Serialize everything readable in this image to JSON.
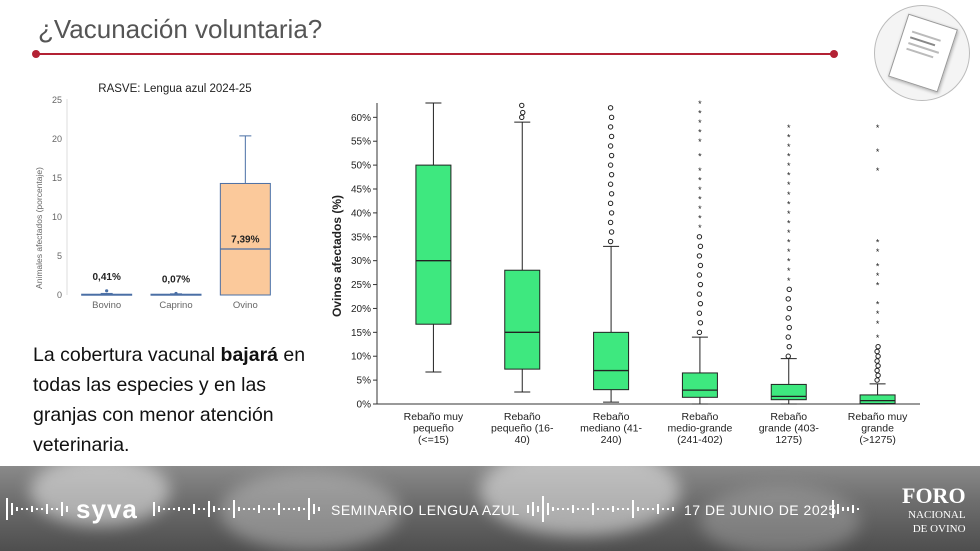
{
  "slide": {
    "title": "¿Vacunación voluntaria?",
    "body_prefix": "La cobertura vacunal ",
    "body_bold": "bajará",
    "body_suffix": " en todas las especies y en las granjas con menor atención veterinaria."
  },
  "footer": {
    "logo_left": "syva",
    "event": "SEMINARIO LENGUA AZUL",
    "date": "17 DE JUNIO DE 2025",
    "logo_right_line1": "FORO",
    "logo_right_line2": "NACIONAL",
    "logo_right_line3": "DE OVINO"
  },
  "colors": {
    "accent": "#b32134",
    "box_orange": "#fbc99b",
    "box_green": "#3ee87f",
    "whisker_blue": "#4a6fa5"
  },
  "chart_data": [
    {
      "type": "box",
      "title": "RASVE: Lengua azul 2024-25",
      "ylabel": "Animales afectados (porcentaje)",
      "xlabel": "",
      "ylim": [
        0,
        25
      ],
      "yticks": [
        "0",
        "5",
        "10",
        "15",
        "20",
        "25"
      ],
      "grid": false,
      "categories": [
        "Bovino",
        "Caprino",
        "Ovino"
      ],
      "boxes": [
        {
          "category": "Bovino",
          "min": 0,
          "q1": 0,
          "median": 0.05,
          "q3": 0.1,
          "max": 0.2,
          "mean": 0.41,
          "mean_label": "0,41%"
        },
        {
          "category": "Caprino",
          "min": 0,
          "q1": 0,
          "median": 0.05,
          "q3": 0.1,
          "max": 0.15,
          "mean": 0.07,
          "mean_label": "0,07%"
        },
        {
          "category": "Ovino",
          "min": 0,
          "q1": 0,
          "median": 5.9,
          "q3": 14.3,
          "max": 20.4,
          "mean": 7.39,
          "mean_label": "7,39%"
        }
      ]
    },
    {
      "type": "box",
      "title": "",
      "ylabel": "Ovinos afectados (%)",
      "xlabel": "",
      "ylim": [
        0,
        63
      ],
      "yticks": [
        "0%",
        "5%",
        "10%",
        "15%",
        "20%",
        "25%",
        "30%",
        "35%",
        "40%",
        "45%",
        "50%",
        "55%",
        "60%"
      ],
      "grid": false,
      "categories": [
        [
          "Rebaño muy",
          "pequeño",
          "(<=15)"
        ],
        [
          "Rebaño",
          "pequeño (16-",
          "40)"
        ],
        [
          "Rebaño",
          "mediano (41-",
          "240)"
        ],
        [
          "Rebaño",
          "medio-grande",
          "(241-402)"
        ],
        [
          "Rebaño",
          "grande (403-",
          "1275)"
        ],
        [
          "Rebaño muy",
          "grande",
          "(>1275)"
        ]
      ],
      "boxes": [
        {
          "min": 6.7,
          "q1": 16.7,
          "median": 30.0,
          "q3": 50.0,
          "max": 63.0,
          "outliers": [],
          "extremes": []
        },
        {
          "min": 2.5,
          "q1": 7.3,
          "median": 15.0,
          "q3": 28.0,
          "max": 59.0,
          "outliers": [
            60,
            61,
            62.5
          ],
          "extremes": []
        },
        {
          "min": 0.4,
          "q1": 3.0,
          "median": 7.0,
          "q3": 15.0,
          "max": 33.0,
          "outliers": [
            34,
            36,
            38,
            40,
            42,
            44,
            46,
            48,
            50,
            52,
            54,
            56,
            58,
            60,
            62
          ],
          "extremes": []
        },
        {
          "min": 0,
          "q1": 1.4,
          "median": 2.9,
          "q3": 6.5,
          "max": 14.0,
          "outliers": [
            15,
            17,
            19,
            21,
            23,
            25,
            27,
            29,
            31,
            33,
            35
          ],
          "extremes": [
            37,
            39,
            41,
            43,
            45,
            47,
            49,
            52,
            55,
            57,
            59,
            61,
            63
          ]
        },
        {
          "min": 0,
          "q1": 0.9,
          "median": 1.6,
          "q3": 4.1,
          "max": 9.5,
          "outliers": [
            10,
            12,
            14,
            16,
            18,
            20,
            22,
            24
          ],
          "extremes": [
            26,
            28,
            30,
            32,
            34,
            36,
            38,
            40,
            42,
            44,
            46,
            48,
            50,
            52,
            54,
            56,
            58
          ]
        },
        {
          "min": 0,
          "q1": 0.1,
          "median": 0.7,
          "q3": 1.9,
          "max": 4.2,
          "outliers": [
            5,
            6,
            7,
            8,
            9,
            10,
            11,
            12
          ],
          "extremes": [
            14,
            17,
            19,
            21,
            25,
            27,
            29,
            32,
            34,
            49,
            53,
            58
          ]
        }
      ]
    }
  ]
}
